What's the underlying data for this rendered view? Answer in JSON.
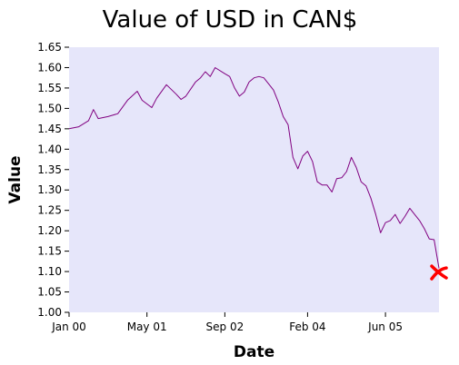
{
  "chart_data": {
    "type": "line",
    "title": "Value of USD in CAN$",
    "xlabel": "Date",
    "ylabel": "Value",
    "ylim": [
      1.0,
      1.65
    ],
    "xlim": [
      "2000-01",
      "2006-05"
    ],
    "y_ticks": [
      "1.00",
      "1.05",
      "1.10",
      "1.15",
      "1.20",
      "1.25",
      "1.30",
      "1.35",
      "1.40",
      "1.45",
      "1.50",
      "1.55",
      "1.60",
      "1.65"
    ],
    "x_ticks": [
      {
        "label": "Jan 00",
        "date": "2000-01"
      },
      {
        "label": "May 01",
        "date": "2001-05"
      },
      {
        "label": "Sep 02",
        "date": "2002-09"
      },
      {
        "label": "Feb 04",
        "date": "2004-02"
      },
      {
        "label": "Jun 05",
        "date": "2005-06"
      }
    ],
    "grid": false,
    "colors": {
      "plot_background": "#e6e6fa",
      "line": "#800080",
      "marker": "#ff0000"
    },
    "series": [
      {
        "x": [
          "2000-01",
          "2000-03",
          "2000-05",
          "2000-06",
          "2000-07",
          "2000-09",
          "2000-11",
          "2001-01",
          "2001-03",
          "2001-04",
          "2001-06",
          "2001-07",
          "2001-09",
          "2001-11",
          "2001-12",
          "2002-01",
          "2002-03",
          "2002-04",
          "2002-05",
          "2002-06",
          "2002-07",
          "2002-09",
          "2002-10",
          "2002-11",
          "2002-12",
          "2003-01",
          "2003-02",
          "2003-03",
          "2003-04",
          "2003-05",
          "2003-06",
          "2003-07",
          "2003-08",
          "2003-09",
          "2003-10",
          "2003-11",
          "2003-12",
          "2004-01",
          "2004-02",
          "2004-03",
          "2004-04",
          "2004-05",
          "2004-06",
          "2004-07",
          "2004-08",
          "2004-09",
          "2004-10",
          "2004-11",
          "2004-12",
          "2005-01",
          "2005-02",
          "2005-03",
          "2005-04",
          "2005-05",
          "2005-06",
          "2005-07",
          "2005-08",
          "2005-09",
          "2005-10",
          "2005-11",
          "2005-12",
          "2006-01",
          "2006-02",
          "2006-03",
          "2006-04",
          "2006-05"
        ],
        "values": [
          1.45,
          1.455,
          1.47,
          1.497,
          1.475,
          1.48,
          1.487,
          1.52,
          1.542,
          1.52,
          1.502,
          1.525,
          1.558,
          1.535,
          1.522,
          1.53,
          1.565,
          1.575,
          1.59,
          1.578,
          1.6,
          1.585,
          1.578,
          1.55,
          1.53,
          1.54,
          1.565,
          1.575,
          1.578,
          1.575,
          1.56,
          1.545,
          1.515,
          1.48,
          1.46,
          1.38,
          1.352,
          1.383,
          1.395,
          1.37,
          1.32,
          1.312,
          1.312,
          1.295,
          1.328,
          1.33,
          1.345,
          1.38,
          1.355,
          1.32,
          1.31,
          1.28,
          1.24,
          1.195,
          1.22,
          1.225,
          1.24,
          1.218,
          1.235,
          1.255,
          1.24,
          1.225,
          1.205,
          1.18,
          1.178,
          1.108
        ]
      }
    ],
    "marker": {
      "date": "2006-05",
      "value": 1.1,
      "symbol": "x"
    }
  }
}
